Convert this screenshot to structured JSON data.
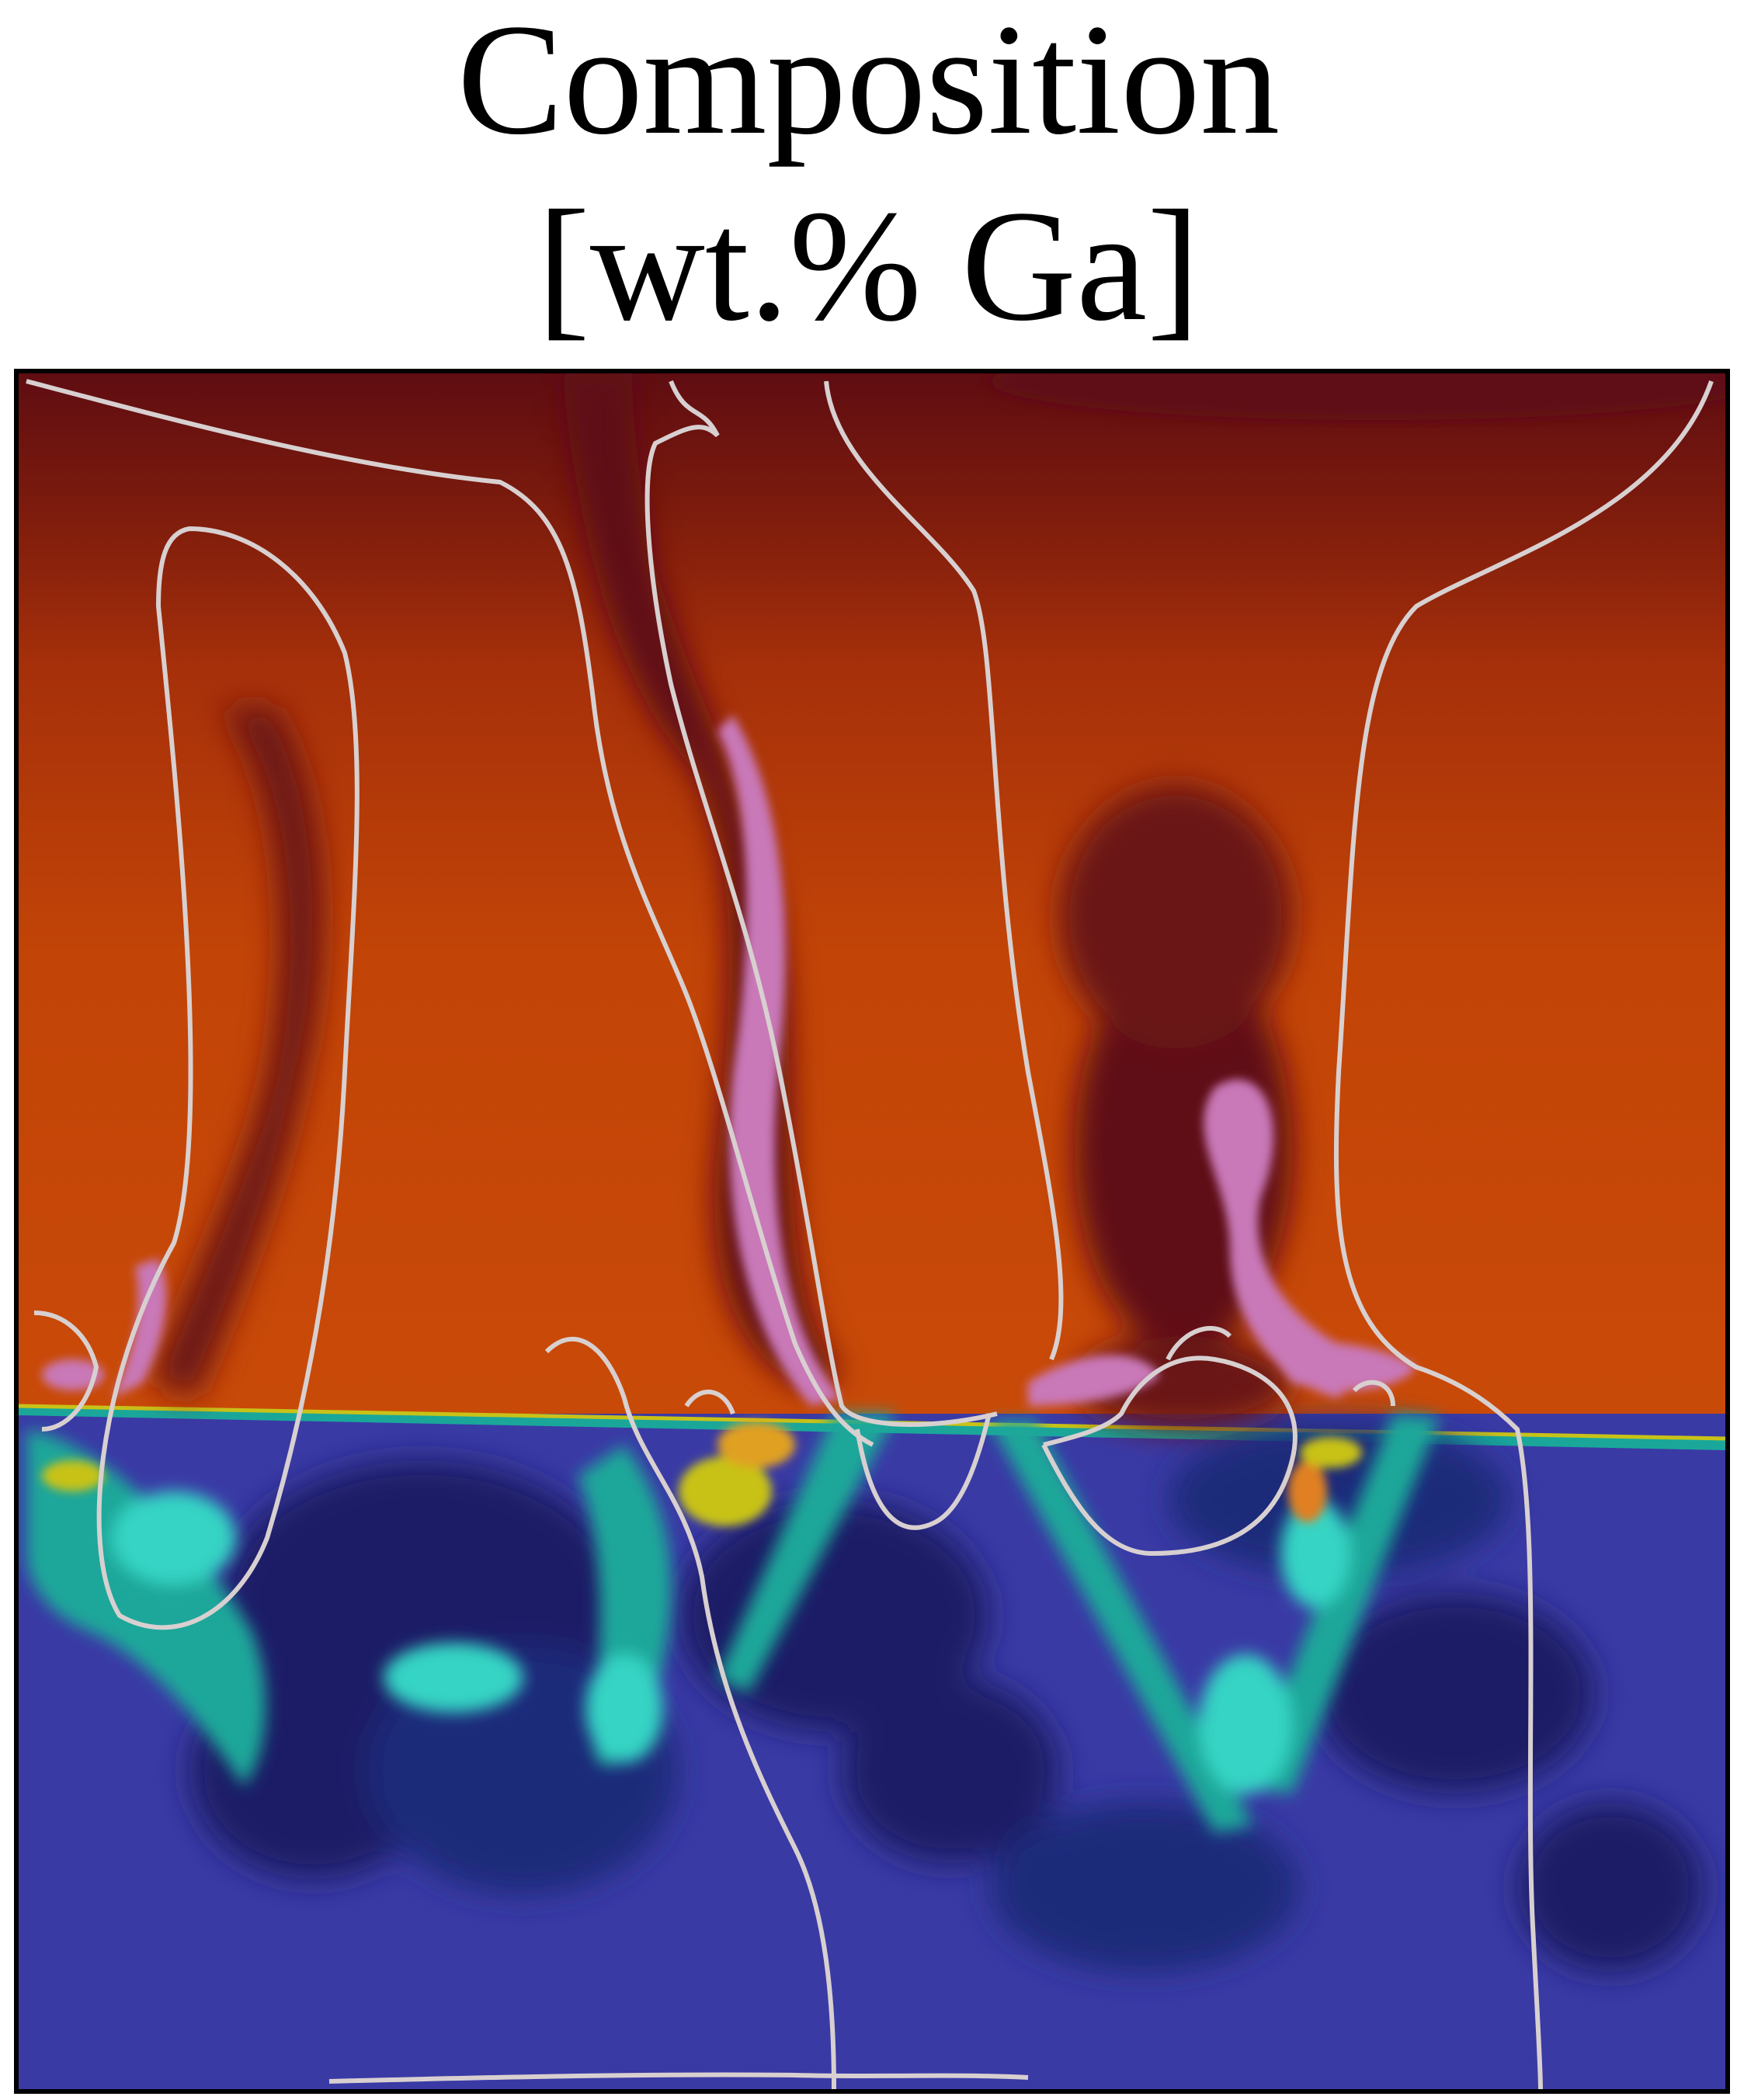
{
  "title": {
    "line1": "Composition",
    "line2": "[wt.% Ga]"
  },
  "image": {
    "alt": "Composition field showing a liquid region above a mushy/solid region with compositional plumes",
    "colors": {
      "liquid_dark": "#5f0d12",
      "liquid_mid": "#8a1e0c",
      "liquid_orange": "#c94a08",
      "plume_pink": "#c978b8",
      "plume_purple": "#7a2a4a",
      "solid_blue": "#3a3aa5",
      "solid_navy": "#1b1b66",
      "teal": "#1aa79a",
      "cyan": "#35d4c4",
      "yellow": "#c8c218",
      "contour": "#d8d0d0"
    }
  }
}
